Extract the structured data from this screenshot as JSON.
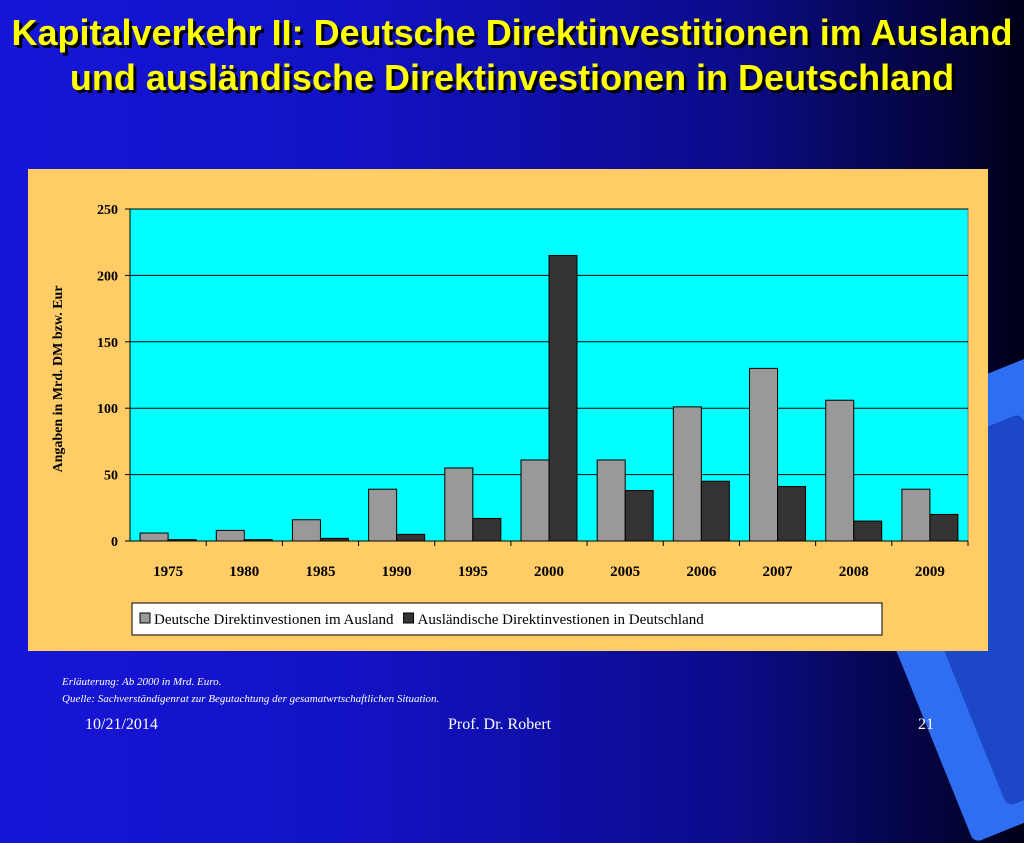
{
  "slide": {
    "title": "Kapitalverkehr II: Deutsche Direktinvestitionen im Ausland und ausländische Direktinvestionen in Deutschland",
    "note_line1": "Erläuterung: Ab 2000 in Mrd. Euro.",
    "note_line2": "Quelle: Sachverständigenrat  zur Begutachtung der gesamatwrtschaftlichen Situation.",
    "footer_date": "10/21/2014",
    "footer_author": "Prof. Dr. Robert",
    "footer_page": "21"
  },
  "colors": {
    "plot_background": "#00ffff",
    "chart_background": "#ffcc66",
    "title": "#ffff00"
  },
  "chart_data": {
    "type": "bar",
    "title": "",
    "xlabel": "",
    "ylabel": "Angaben in Mrd. DM bzw. Eur",
    "ylim": [
      0,
      250
    ],
    "yticks": [
      0,
      50,
      100,
      150,
      200,
      250
    ],
    "grid": true,
    "legend_position": "bottom",
    "categories": [
      "1975",
      "1980",
      "1985",
      "1990",
      "1995",
      "2000",
      "2005",
      "2006",
      "2007",
      "2008",
      "2009"
    ],
    "series": [
      {
        "name": "Deutsche Direktinvestionen im Ausland",
        "color": "#999999",
        "values": [
          6,
          8,
          16,
          39,
          55,
          61,
          61,
          101,
          130,
          106,
          39
        ]
      },
      {
        "name": "Ausländische Direktinvestionen in Deutschland",
        "color": "#333333",
        "values": [
          1,
          1,
          2,
          5,
          17,
          215,
          38,
          45,
          41,
          15,
          20
        ]
      }
    ]
  }
}
